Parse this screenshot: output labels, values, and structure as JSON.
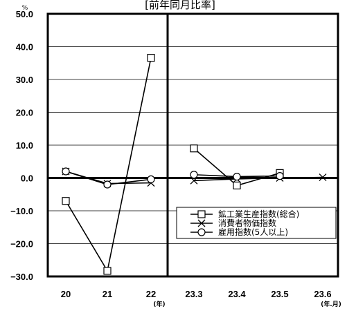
{
  "chart_data": {
    "type": "line",
    "title": "[前年同月比率]",
    "y_unit": "%",
    "ylim": [
      -30,
      50
    ],
    "yticks": [
      "50.0",
      "40.0",
      "30.0",
      "20.0",
      "10.0",
      "0.0",
      "-10.0",
      "-20.0",
      "-30.0"
    ],
    "categories": [
      "20",
      "21",
      "22",
      "23.3",
      "23.4",
      "23.5",
      "23.6"
    ],
    "x_sublabels": {
      "22": "(年)",
      "23.6": "(年.月)"
    },
    "grid": "horizontal",
    "legend_position": "bottom-right",
    "series": [
      {
        "name": "鉱工業生産指数(総合)",
        "marker": "square",
        "values": [
          -7.0,
          -28.3,
          36.6,
          9.0,
          -2.3,
          1.5,
          null
        ]
      },
      {
        "name": "消費者物価指数",
        "marker": "cross",
        "values": [
          2.0,
          -1.7,
          -1.5,
          -0.8,
          -0.3,
          0.0,
          0.2
        ]
      },
      {
        "name": "雇用指数(5人以上)",
        "marker": "circle",
        "values": [
          2.0,
          -2.0,
          -0.4,
          1.0,
          0.4,
          0.6,
          null
        ]
      }
    ]
  }
}
